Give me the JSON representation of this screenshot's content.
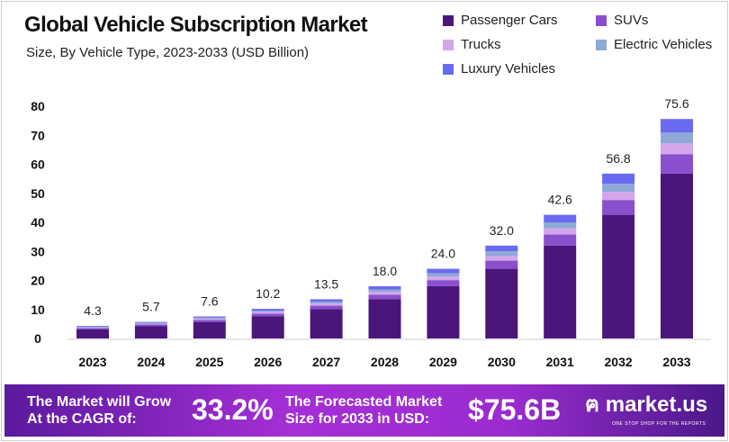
{
  "chart_data": {
    "type": "bar",
    "stacked": true,
    "title": "Global Vehicle Subscription Market",
    "subtitle": "Size, By Vehicle Type, 2023-2033 (USD Billion)",
    "categories": [
      "2023",
      "2024",
      "2025",
      "2026",
      "2027",
      "2028",
      "2029",
      "2030",
      "2031",
      "2032",
      "2033"
    ],
    "totals": [
      4.3,
      5.7,
      7.6,
      10.2,
      13.5,
      18.0,
      24.0,
      32.0,
      42.6,
      56.8,
      75.6
    ],
    "total_labels": [
      "4.3",
      "5.7",
      "7.6",
      "10.2",
      "13.5",
      "18.0",
      "24.0",
      "32.0",
      "42.6",
      "56.8",
      "75.6"
    ],
    "series": [
      {
        "name": "Passenger Cars",
        "color": "#4b167c",
        "values": [
          3.2,
          4.3,
          5.7,
          7.7,
          10.1,
          13.5,
          18.0,
          24.0,
          32.0,
          42.6,
          56.8
        ]
      },
      {
        "name": "SUVs",
        "color": "#8a4fcc",
        "values": [
          0.4,
          0.5,
          0.7,
          0.9,
          1.2,
          1.6,
          2.1,
          2.8,
          3.8,
          5.1,
          6.7
        ]
      },
      {
        "name": "Trucks",
        "color": "#d4a6ea",
        "values": [
          0.2,
          0.3,
          0.4,
          0.5,
          0.7,
          0.9,
          1.2,
          1.6,
          2.1,
          2.8,
          3.7
        ]
      },
      {
        "name": "Electric Vehicles",
        "color": "#8fa8d8",
        "values": [
          0.2,
          0.3,
          0.4,
          0.5,
          0.7,
          0.9,
          1.2,
          1.6,
          2.1,
          2.8,
          3.8
        ]
      },
      {
        "name": "Luxury Vehicles",
        "color": "#6a6af0",
        "values": [
          0.3,
          0.3,
          0.4,
          0.6,
          0.8,
          1.1,
          1.5,
          2.0,
          2.6,
          3.5,
          4.6
        ]
      }
    ],
    "yticks": [
      "0",
      "10",
      "20",
      "30",
      "40",
      "50",
      "60",
      "70",
      "80"
    ],
    "ylim": [
      0,
      80
    ],
    "grid": false,
    "legend_position": "top-right"
  },
  "banner": {
    "cagr_text_1": "The Market will Grow",
    "cagr_text_2": "At the CAGR of:",
    "cagr": "33.2%",
    "forecast_text_1": "The Forecasted Market",
    "forecast_text_2": "Size for 2033 in USD:",
    "forecast": "$75.6B",
    "logo": "market.us",
    "tagline": "ONE STOP SHOP FOR THE REPORTS"
  }
}
